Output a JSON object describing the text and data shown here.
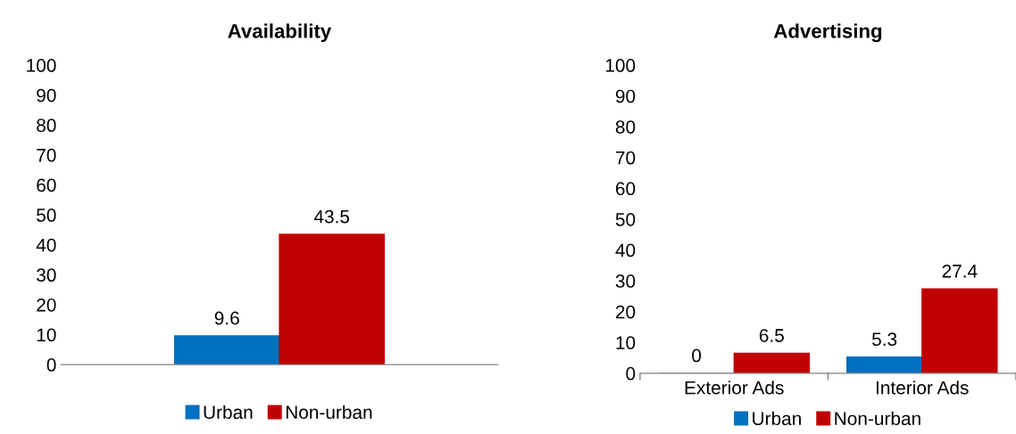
{
  "chart_data": [
    {
      "type": "bar",
      "title": "Availability",
      "categories": [
        null
      ],
      "series": [
        {
          "name": "Urban",
          "color": "#0070c0",
          "values": [
            9.6
          ]
        },
        {
          "name": "Non-urban",
          "color": "#c00000",
          "values": [
            43.5
          ]
        }
      ],
      "ylim": [
        0,
        100
      ],
      "yticks": [
        0,
        10,
        20,
        30,
        40,
        50,
        60,
        70,
        80,
        90,
        100
      ],
      "data_labels": true,
      "grid": false,
      "legend": "bottom"
    },
    {
      "type": "bar",
      "title": "Advertising",
      "categories": [
        "Exterior Ads",
        "Interior Ads"
      ],
      "series": [
        {
          "name": "Urban",
          "color": "#0070c0",
          "values": [
            0,
            5.3
          ]
        },
        {
          "name": "Non-urban",
          "color": "#c00000",
          "values": [
            6.5,
            27.4
          ]
        }
      ],
      "ylim": [
        0,
        100
      ],
      "yticks": [
        0,
        10,
        20,
        30,
        40,
        50,
        60,
        70,
        80,
        90,
        100
      ],
      "data_labels": true,
      "grid": false,
      "legend": "bottom"
    }
  ]
}
